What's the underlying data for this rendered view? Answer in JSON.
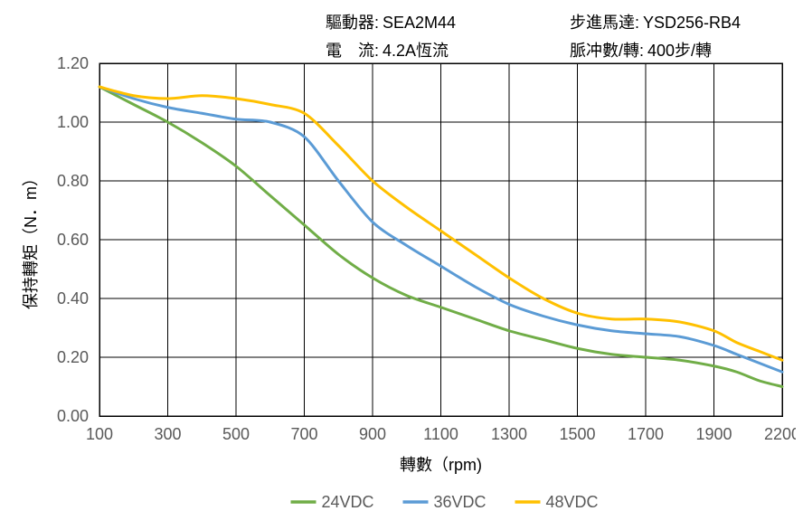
{
  "meta": {
    "row1": {
      "left_label": "驅動器:",
      "left_value": "SEA2M44",
      "right_label": "步進馬達:",
      "right_value": "YSD256-RB4"
    },
    "row2": {
      "left_label": "電　流:",
      "left_value": "4.2A恆流",
      "right_label": "脈冲數/轉:",
      "right_value": "400步/轉"
    }
  },
  "chart": {
    "type": "line",
    "background_color": "#ffffff",
    "grid_color": "#000000",
    "border_color": "#000000",
    "tick_label_color": "#595959",
    "axis_label_color": "#000000",
    "axis_label_fontsize": 18,
    "tick_label_fontsize": 18,
    "line_width": 3,
    "x_label": "轉數（rpm)",
    "y_label": "保持轉矩（N．m）",
    "x_min": 100,
    "x_max": 2200,
    "x_ticks": [
      100,
      300,
      500,
      700,
      900,
      1100,
      1300,
      1500,
      1700,
      1900,
      2200
    ],
    "x_tick_labels": [
      "100",
      "300",
      "500",
      "700",
      "900",
      "1100",
      "1300",
      "1500",
      "1700",
      "1900",
      "2200"
    ],
    "y_min": 0.0,
    "y_max": 1.2,
    "y_ticks": [
      0.0,
      0.2,
      0.4,
      0.6,
      0.8,
      1.0,
      1.2
    ],
    "y_tick_labels": [
      "0.00",
      "0.20",
      "0.40",
      "0.60",
      "0.80",
      "1.00",
      "1.20"
    ],
    "x_values": [
      100,
      200,
      300,
      400,
      500,
      600,
      700,
      800,
      900,
      1000,
      1100,
      1200,
      1300,
      1400,
      1500,
      1600,
      1700,
      1800,
      1900,
      2000,
      2100,
      2200
    ],
    "series": [
      {
        "name": "24VDC",
        "color": "#70ad47",
        "y": [
          1.12,
          1.06,
          1.0,
          0.93,
          0.85,
          0.75,
          0.65,
          0.55,
          0.47,
          0.41,
          0.37,
          0.33,
          0.29,
          0.26,
          0.23,
          0.21,
          0.2,
          0.19,
          0.17,
          0.15,
          0.12,
          0.1
        ]
      },
      {
        "name": "36VDC",
        "color": "#5b9bd5",
        "y": [
          1.12,
          1.08,
          1.05,
          1.03,
          1.01,
          1.0,
          0.95,
          0.8,
          0.66,
          0.58,
          0.51,
          0.44,
          0.38,
          0.34,
          0.31,
          0.29,
          0.28,
          0.27,
          0.24,
          0.21,
          0.18,
          0.15
        ]
      },
      {
        "name": "48VDC",
        "color": "#ffc000",
        "y": [
          1.12,
          1.09,
          1.08,
          1.09,
          1.08,
          1.06,
          1.03,
          0.92,
          0.8,
          0.71,
          0.63,
          0.55,
          0.47,
          0.4,
          0.35,
          0.33,
          0.33,
          0.32,
          0.29,
          0.25,
          0.22,
          0.19
        ]
      }
    ],
    "legend": {
      "prefix_dash": "—",
      "fontsize": 18,
      "text_color": "#595959"
    }
  }
}
